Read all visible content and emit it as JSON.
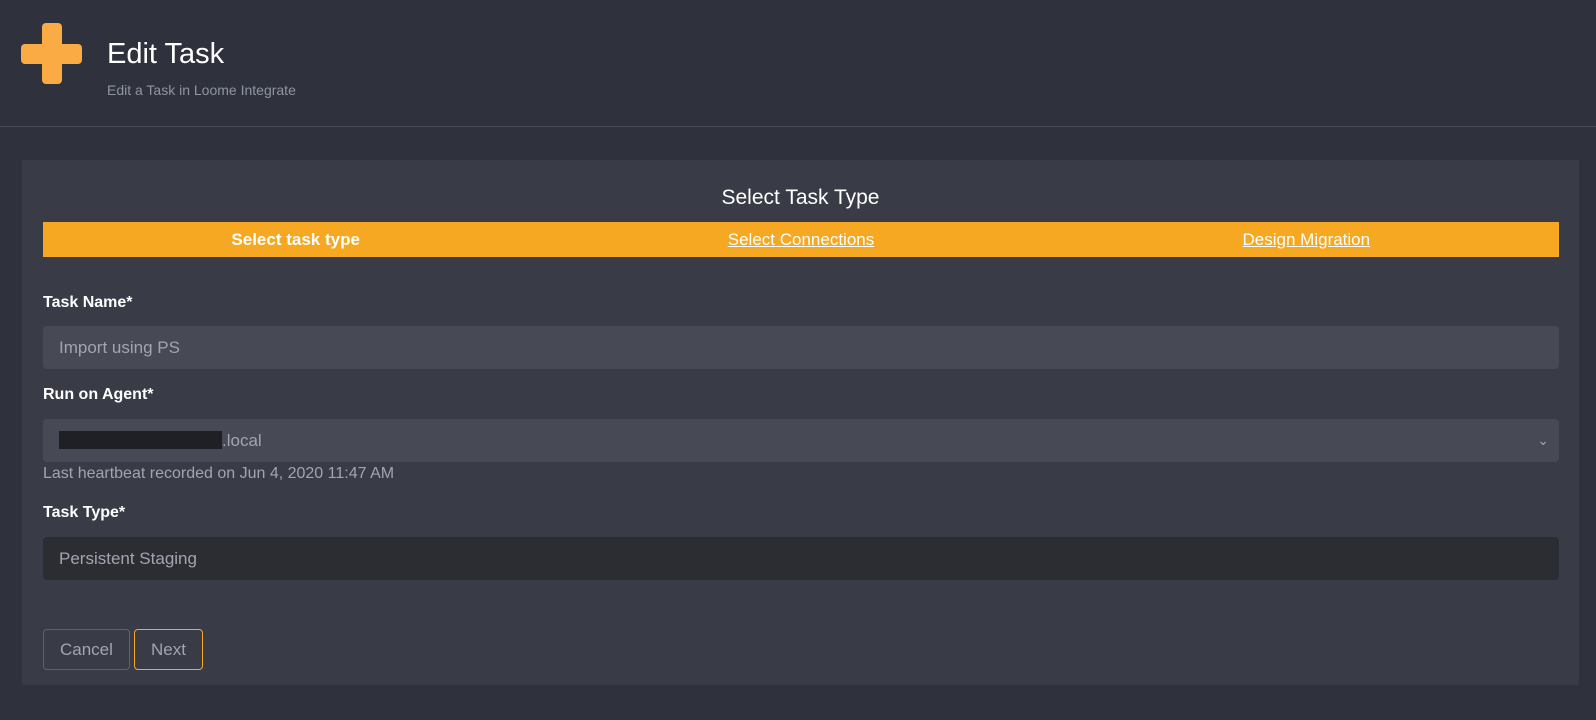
{
  "header": {
    "title": "Edit Task",
    "subtitle": "Edit a Task in Loome Integrate",
    "icon": "plus-icon",
    "accent": "#f6a823"
  },
  "wizard": {
    "title": "Select Task Type",
    "steps": [
      {
        "label": "Select task type",
        "active": true
      },
      {
        "label": "Select Connections",
        "active": false
      },
      {
        "label": "Design Migration",
        "active": false
      }
    ]
  },
  "form": {
    "task_name": {
      "label": "Task Name*",
      "value": "Import using PS"
    },
    "agent": {
      "label": "Run on Agent*",
      "value_suffix": ".local",
      "hint": "Last heartbeat recorded on Jun 4, 2020 11:47 AM"
    },
    "task_type": {
      "label": "Task Type*",
      "value": "Persistent Staging"
    }
  },
  "buttons": {
    "cancel": "Cancel",
    "next": "Next"
  }
}
